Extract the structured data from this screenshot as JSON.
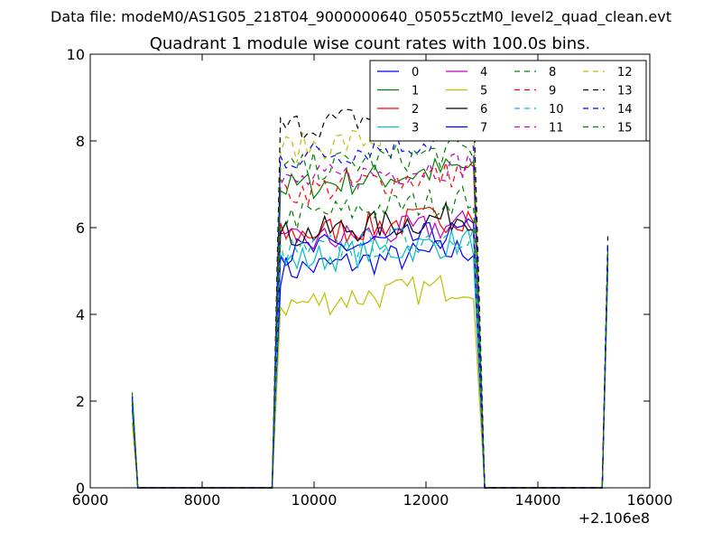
{
  "chart_data": {
    "type": "line",
    "suptitle": "Data file: modeM0/AS1G05_218T04_9000000640_05055cztM0_level2_quad_clean.evt",
    "title": "Quadrant 1 module wise count rates with 100.0s bins.",
    "xlabel": "",
    "ylabel": "",
    "x_offset_label": "+2.106e8",
    "xlim": [
      6000,
      16000
    ],
    "ylim": [
      0,
      10
    ],
    "xticks": [
      "6000",
      "8000",
      "10000",
      "12000",
      "14000",
      "16000"
    ],
    "yticks": [
      "0",
      "2",
      "4",
      "6",
      "8",
      "10"
    ],
    "grid": false,
    "legend_position": "top-right",
    "segments": [
      {
        "x_start": 6750,
        "x_end": 6850
      },
      {
        "x_start": 9250,
        "x_end": 13050
      },
      {
        "x_start": 15150,
        "x_end": 15250
      }
    ],
    "series": [
      {
        "name": "0",
        "color": "#0000ff",
        "dash": "solid",
        "start_value": 2.1,
        "plateau_level": 5.0,
        "end_value": 5.3
      },
      {
        "name": "1",
        "color": "#008000",
        "dash": "solid",
        "start_value": 2.0,
        "plateau_level": 6.9,
        "end_value": 5.4
      },
      {
        "name": "2",
        "color": "#ff0000",
        "dash": "solid",
        "start_value": 1.9,
        "plateau_level": 5.8,
        "end_value": 5.2
      },
      {
        "name": "3",
        "color": "#00bfbf",
        "dash": "solid",
        "start_value": 1.8,
        "plateau_level": 5.2,
        "end_value": 5.0
      },
      {
        "name": "4",
        "color": "#bf00bf",
        "dash": "solid",
        "start_value": 1.9,
        "plateau_level": 5.6,
        "end_value": 5.3
      },
      {
        "name": "5",
        "color": "#bfbf00",
        "dash": "solid",
        "start_value": 1.5,
        "plateau_level": 4.2,
        "end_value": 5.0
      },
      {
        "name": "6",
        "color": "#000000",
        "dash": "solid",
        "start_value": 1.9,
        "plateau_level": 5.8,
        "end_value": 5.4
      },
      {
        "name": "7",
        "color": "#0000ff",
        "dash": "solid",
        "start_value": 1.9,
        "plateau_level": 5.4,
        "end_value": 5.2
      },
      {
        "name": "8",
        "color": "#008000",
        "dash": "dashed",
        "start_value": 2.2,
        "plateau_level": 6.2,
        "end_value": 5.5
      },
      {
        "name": "9",
        "color": "#ff0000",
        "dash": "dashed",
        "start_value": 2.0,
        "plateau_level": 6.8,
        "end_value": 5.4
      },
      {
        "name": "10",
        "color": "#00bfbf",
        "dash": "dashed",
        "start_value": 1.9,
        "plateau_level": 5.4,
        "end_value": 5.1
      },
      {
        "name": "11",
        "color": "#bf00bf",
        "dash": "dashed",
        "start_value": 2.0,
        "plateau_level": 7.0,
        "end_value": 5.5
      },
      {
        "name": "12",
        "color": "#bfbf00",
        "dash": "dashed",
        "start_value": 2.1,
        "plateau_level": 7.8,
        "end_value": 5.6
      },
      {
        "name": "13",
        "color": "#000000",
        "dash": "dashed",
        "start_value": 2.0,
        "plateau_level": 8.3,
        "end_value": 5.8
      },
      {
        "name": "14",
        "color": "#0000ff",
        "dash": "dashed",
        "start_value": 2.1,
        "plateau_level": 7.6,
        "end_value": 5.6
      },
      {
        "name": "15",
        "color": "#008000",
        "dash": "dashed",
        "start_value": 2.0,
        "plateau_level": 7.3,
        "end_value": 5.5
      }
    ]
  }
}
